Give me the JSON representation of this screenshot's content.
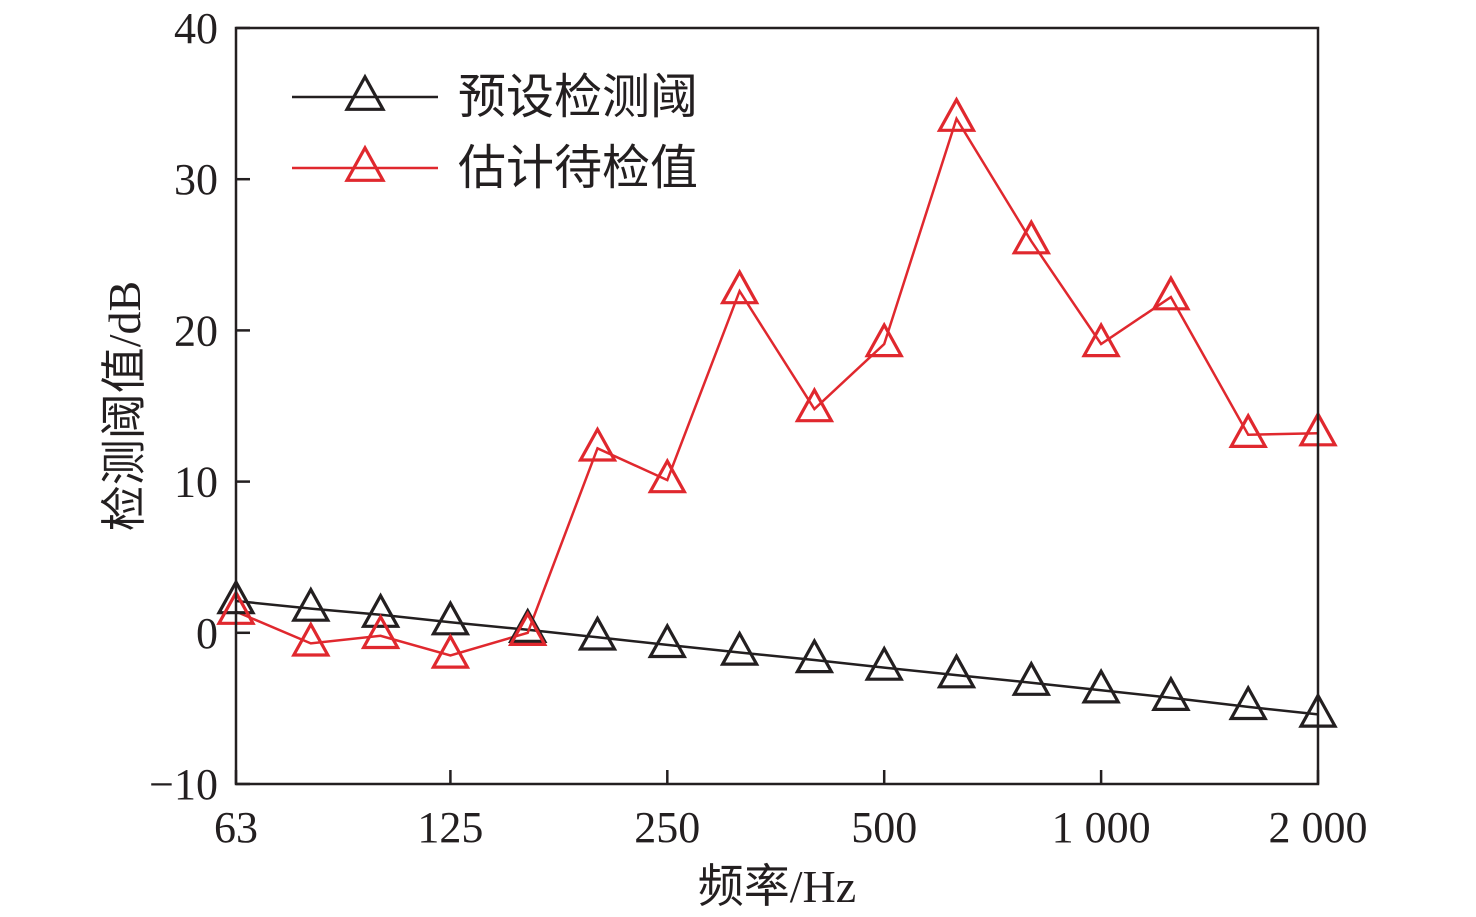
{
  "chart_data": {
    "type": "line",
    "title": "",
    "xlabel": "频率/Hz",
    "ylabel": "检测阈值/dB",
    "ylim": [
      -10,
      40
    ],
    "yticks": [
      -10,
      0,
      10,
      20,
      30,
      40
    ],
    "ytick_labels": [
      "−10",
      "0",
      "10",
      "20",
      "30",
      "40"
    ],
    "x": [
      63,
      80,
      100,
      125,
      160,
      200,
      250,
      315,
      400,
      500,
      630,
      800,
      1000,
      1250,
      1600,
      2000
    ],
    "x_scale": "log",
    "xticks": [
      63,
      125,
      250,
      500,
      1000,
      2000
    ],
    "xtick_labels": [
      "63",
      "125",
      "250",
      "500",
      "1 000",
      "2 000"
    ],
    "grid": false,
    "legend_position": "top-left",
    "series": [
      {
        "name": "预设检测阈",
        "color": "#231f20",
        "marker": "triangle-open",
        "values": [
          2.1,
          1.6,
          1.2,
          0.7,
          0.2,
          -0.3,
          -0.8,
          -1.3,
          -1.8,
          -2.3,
          -2.8,
          -3.3,
          -3.8,
          -4.3,
          -4.9,
          -5.4
        ]
      },
      {
        "name": "估计待检值",
        "color": "#e0282e",
        "marker": "triangle-open",
        "values": [
          1.4,
          -0.7,
          -0.2,
          -1.5,
          0.0,
          12.2,
          10.1,
          22.6,
          14.8,
          19.1,
          34.0,
          25.9,
          19.1,
          22.2,
          13.1,
          13.2
        ]
      }
    ]
  }
}
